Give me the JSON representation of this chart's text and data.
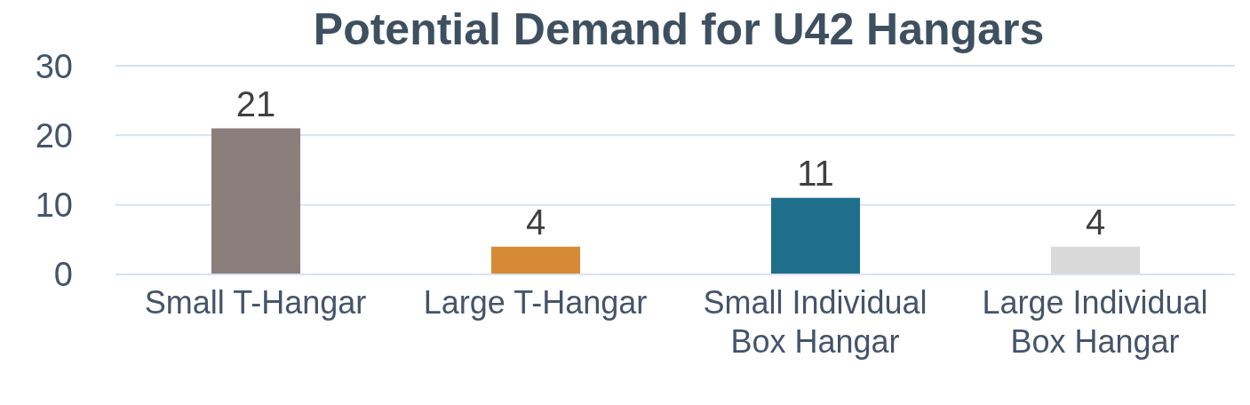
{
  "chart_data": {
    "type": "bar",
    "title": "Potential Demand for U42 Hangars",
    "categories": [
      "Small T-Hangar",
      "Large T-Hangar",
      "Small Individual Box Hangar",
      "Large Individual Box Hangar"
    ],
    "values": [
      21,
      4,
      11,
      4
    ],
    "colors": [
      "#8a7f7c",
      "#d68a35",
      "#1f6e8c",
      "#d9d9d9"
    ],
    "ylim": [
      0,
      30
    ],
    "yticks": [
      0,
      10,
      20,
      30
    ],
    "grid": "y",
    "data_labels": true
  }
}
